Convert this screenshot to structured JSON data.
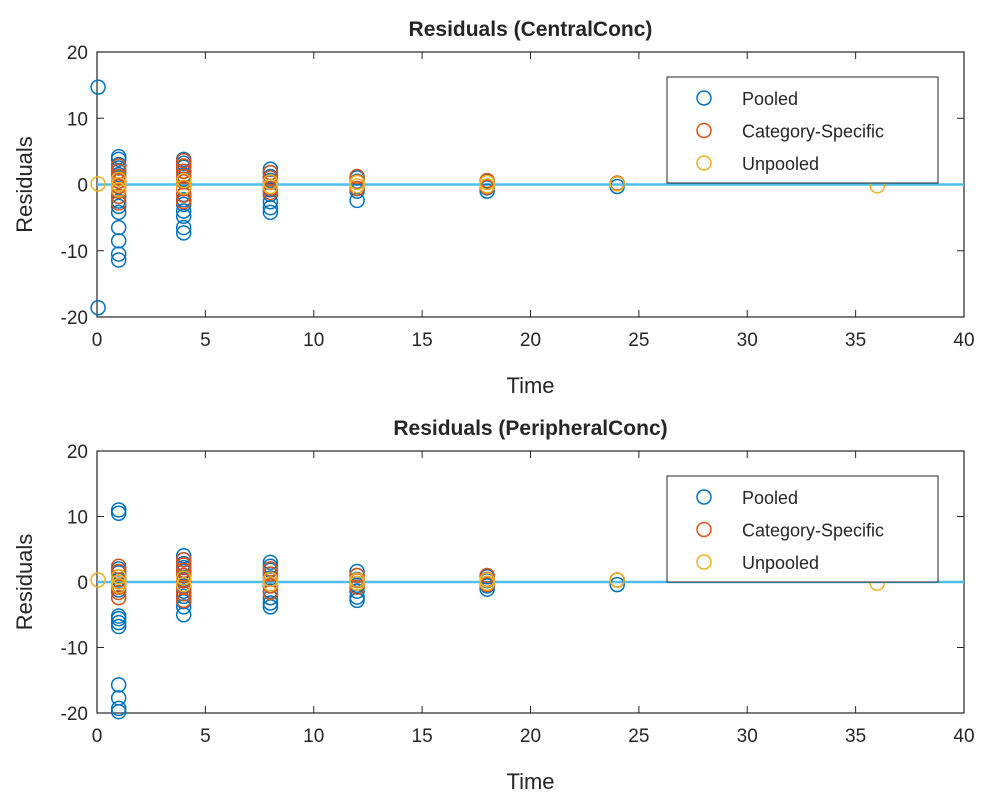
{
  "colors": {
    "pooled": "#0072BD",
    "category_specific": "#D95319",
    "unpooled": "#EDB120",
    "zero_line": "#4DBEEE",
    "axis": "#262626"
  },
  "chart_data": [
    {
      "type": "scatter",
      "title": "Residuals (CentralConc)",
      "xlabel": "Time",
      "ylabel": "Residuals",
      "xlim": [
        0,
        40
      ],
      "ylim": [
        -20,
        20
      ],
      "xticks": [
        0,
        5,
        10,
        15,
        20,
        25,
        30,
        35,
        40
      ],
      "yticks": [
        -20,
        -10,
        0,
        10,
        20
      ],
      "legend_position": "top-right",
      "grid": false,
      "reference_line": {
        "y": 0
      },
      "series": [
        {
          "name": "Pooled",
          "points": [
            [
              0.05,
              14.7
            ],
            [
              0.05,
              -18.6
            ],
            [
              1,
              4.2
            ],
            [
              1,
              3.8
            ],
            [
              1,
              3.0
            ],
            [
              1,
              2.5
            ],
            [
              1,
              2.0
            ],
            [
              1,
              1.5
            ],
            [
              1,
              1.0
            ],
            [
              1,
              0.5
            ],
            [
              1,
              -0.3
            ],
            [
              1,
              -1.0
            ],
            [
              1,
              -1.8
            ],
            [
              1,
              -2.5
            ],
            [
              1,
              -3.3
            ],
            [
              1,
              -4.2
            ],
            [
              1,
              -6.5
            ],
            [
              1,
              -8.5
            ],
            [
              1,
              -10.5
            ],
            [
              1,
              -11.4
            ],
            [
              4,
              3.8
            ],
            [
              4,
              3.2
            ],
            [
              4,
              2.6
            ],
            [
              4,
              2.0
            ],
            [
              4,
              1.4
            ],
            [
              4,
              0.8
            ],
            [
              4,
              -0.5
            ],
            [
              4,
              -1.5
            ],
            [
              4,
              -2.3
            ],
            [
              4,
              -3.0
            ],
            [
              4,
              -4.0
            ],
            [
              4,
              -4.8
            ],
            [
              4,
              -6.5
            ],
            [
              4,
              -7.3
            ],
            [
              8,
              2.3
            ],
            [
              8,
              1.8
            ],
            [
              8,
              1.2
            ],
            [
              8,
              0.6
            ],
            [
              8,
              -0.8
            ],
            [
              8,
              -1.5
            ],
            [
              8,
              -2.6
            ],
            [
              8,
              -3.5
            ],
            [
              8,
              -4.2
            ],
            [
              12,
              1.0
            ],
            [
              12,
              0.5
            ],
            [
              12,
              -0.6
            ],
            [
              12,
              -1.0
            ],
            [
              12,
              -2.4
            ],
            [
              18,
              0.5
            ],
            [
              18,
              -0.5
            ],
            [
              18,
              -1.0
            ],
            [
              24,
              0.2
            ],
            [
              24,
              -0.3
            ]
          ]
        },
        {
          "name": "Category-Specific",
          "points": [
            [
              1,
              2.8
            ],
            [
              1,
              2.0
            ],
            [
              1,
              1.2
            ],
            [
              1,
              0.5
            ],
            [
              1,
              -0.3
            ],
            [
              1,
              -1.0
            ],
            [
              1,
              -1.8
            ],
            [
              1,
              -2.8
            ],
            [
              4,
              3.6
            ],
            [
              4,
              2.8
            ],
            [
              4,
              2.0
            ],
            [
              4,
              1.2
            ],
            [
              4,
              0.4
            ],
            [
              4,
              -0.6
            ],
            [
              4,
              -1.6
            ],
            [
              4,
              -2.6
            ],
            [
              8,
              1.8
            ],
            [
              8,
              1.0
            ],
            [
              8,
              0.3
            ],
            [
              8,
              -0.6
            ],
            [
              8,
              -1.2
            ],
            [
              12,
              1.2
            ],
            [
              12,
              0.4
            ],
            [
              12,
              -0.6
            ],
            [
              18,
              0.6
            ],
            [
              18,
              -0.4
            ],
            [
              24,
              0.2
            ]
          ]
        },
        {
          "name": "Unpooled",
          "points": [
            [
              0.05,
              0.1
            ],
            [
              1,
              0.8
            ],
            [
              1,
              0.0
            ],
            [
              1,
              -0.8
            ],
            [
              4,
              0.6
            ],
            [
              4,
              -0.4
            ],
            [
              8,
              0.4
            ],
            [
              8,
              -0.3
            ],
            [
              12,
              0.3
            ],
            [
              12,
              -0.2
            ],
            [
              18,
              0.3
            ],
            [
              18,
              -0.2
            ],
            [
              24,
              0.1
            ],
            [
              36,
              -0.2
            ]
          ]
        }
      ]
    },
    {
      "type": "scatter",
      "title": "Residuals (PeripheralConc)",
      "xlabel": "Time",
      "ylabel": "Residuals",
      "xlim": [
        0,
        40
      ],
      "ylim": [
        -20,
        20
      ],
      "xticks": [
        0,
        5,
        10,
        15,
        20,
        25,
        30,
        35,
        40
      ],
      "yticks": [
        -20,
        -10,
        0,
        10,
        20
      ],
      "legend_position": "top-right",
      "grid": false,
      "reference_line": {
        "y": 0
      },
      "series": [
        {
          "name": "Pooled",
          "points": [
            [
              1,
              11.0
            ],
            [
              1,
              10.5
            ],
            [
              1,
              2.0
            ],
            [
              1,
              1.4
            ],
            [
              1,
              0.8
            ],
            [
              1,
              0.3
            ],
            [
              1,
              -0.5
            ],
            [
              1,
              -1.2
            ],
            [
              1,
              -5.2
            ],
            [
              1,
              -5.6
            ],
            [
              1,
              -6.2
            ],
            [
              1,
              -6.8
            ],
            [
              1,
              -15.7
            ],
            [
              1,
              -17.7
            ],
            [
              1,
              -19.3
            ],
            [
              1,
              -19.8
            ],
            [
              4,
              4.0
            ],
            [
              4,
              3.4
            ],
            [
              4,
              2.8
            ],
            [
              4,
              2.2
            ],
            [
              4,
              1.6
            ],
            [
              4,
              1.0
            ],
            [
              4,
              0.4
            ],
            [
              4,
              -0.6
            ],
            [
              4,
              -1.4
            ],
            [
              4,
              -2.2
            ],
            [
              4,
              -3.0
            ],
            [
              4,
              -3.8
            ],
            [
              4,
              -5.0
            ],
            [
              8,
              3.0
            ],
            [
              8,
              2.4
            ],
            [
              8,
              1.8
            ],
            [
              8,
              1.2
            ],
            [
              8,
              0.6
            ],
            [
              8,
              -0.6
            ],
            [
              8,
              -1.4
            ],
            [
              8,
              -2.4
            ],
            [
              8,
              -3.2
            ],
            [
              8,
              -3.8
            ],
            [
              12,
              1.6
            ],
            [
              12,
              1.0
            ],
            [
              12,
              0.4
            ],
            [
              12,
              -0.5
            ],
            [
              12,
              -1.4
            ],
            [
              12,
              -2.3
            ],
            [
              12,
              -2.8
            ],
            [
              18,
              0.8
            ],
            [
              18,
              0.2
            ],
            [
              18,
              -0.6
            ],
            [
              18,
              -1.1
            ],
            [
              24,
              0.3
            ],
            [
              24,
              -0.4
            ]
          ]
        },
        {
          "name": "Category-Specific",
          "points": [
            [
              1,
              2.4
            ],
            [
              1,
              1.6
            ],
            [
              1,
              0.8
            ],
            [
              1,
              0.0
            ],
            [
              1,
              -0.8
            ],
            [
              1,
              -1.6
            ],
            [
              1,
              -2.4
            ],
            [
              4,
              3.4
            ],
            [
              4,
              2.6
            ],
            [
              4,
              1.8
            ],
            [
              4,
              1.0
            ],
            [
              4,
              0.2
            ],
            [
              4,
              -0.8
            ],
            [
              4,
              -1.8
            ],
            [
              4,
              -2.8
            ],
            [
              8,
              2.0
            ],
            [
              8,
              1.2
            ],
            [
              8,
              0.4
            ],
            [
              8,
              -0.6
            ],
            [
              8,
              -1.6
            ],
            [
              12,
              1.0
            ],
            [
              12,
              0.2
            ],
            [
              12,
              -0.8
            ],
            [
              18,
              1.0
            ],
            [
              18,
              0.4
            ],
            [
              18,
              -0.4
            ],
            [
              24,
              0.3
            ]
          ]
        },
        {
          "name": "Unpooled",
          "points": [
            [
              0.05,
              0.3
            ],
            [
              1,
              0.8
            ],
            [
              1,
              0.0
            ],
            [
              1,
              -0.6
            ],
            [
              4,
              0.6
            ],
            [
              4,
              -0.4
            ],
            [
              8,
              0.4
            ],
            [
              8,
              -0.3
            ],
            [
              12,
              0.3
            ],
            [
              12,
              -0.2
            ],
            [
              18,
              0.3
            ],
            [
              18,
              -0.2
            ],
            [
              24,
              0.3
            ],
            [
              36,
              -0.2
            ]
          ]
        }
      ]
    }
  ]
}
